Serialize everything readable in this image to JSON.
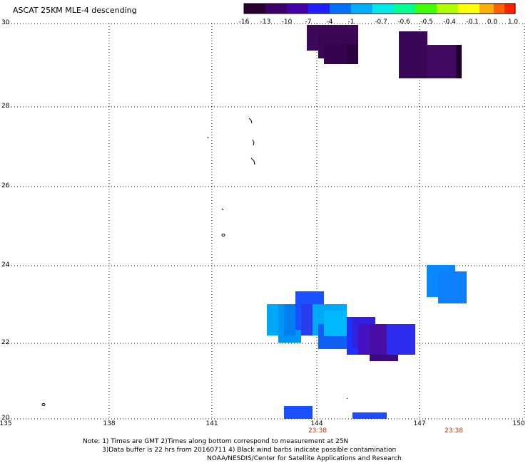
{
  "title": "ASCAT 25KM MLE-4 descending",
  "colorbar": {
    "labels": [
      "-16",
      "-13",
      "-10",
      "-7",
      "-4",
      "-1",
      "-0.7",
      "-0.6",
      "-0.5",
      "-0.4",
      "-0.1",
      "0.0",
      "1.0"
    ],
    "colors": [
      "#2a0030",
      "#40006a",
      "#4800a8",
      "#2020ff",
      "#0070ff",
      "#00b0ff",
      "#00e8e8",
      "#00ff90",
      "#40ff00",
      "#b0ff00",
      "#ffff00",
      "#ffb000",
      "#ff6000",
      "#ff2000"
    ]
  },
  "axes": {
    "lon_ticks": [
      "135",
      "138",
      "141",
      "144",
      "147",
      "150"
    ],
    "lat_ticks": [
      "30",
      "28",
      "26",
      "24",
      "22",
      "20"
    ]
  },
  "times": [
    "23:38",
    "23:38"
  ],
  "notes": {
    "line1": "Note: 1) Times are GMT 2)Times along bottom correspond to measurement at 25N",
    "line2": "3)Data buffer is 22 hrs from 20160711 4) Black wind barbs indicate possible contamination",
    "line3": "NOAA/NESDIS/Center for Satellite Applications and Research"
  },
  "map": {
    "grid": "dotted",
    "lon_range": [
      135,
      150
    ],
    "lat_range": [
      20,
      30
    ]
  }
}
